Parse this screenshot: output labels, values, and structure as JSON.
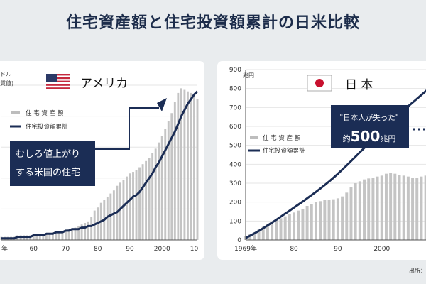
{
  "page": {
    "title": "住宅資産額と住宅投資額累計の日米比較",
    "source": "出所：",
    "colors": {
      "bar": "#c4c4c4",
      "line": "#1b2d55",
      "callout": "#1b2d55",
      "callout_text": "#ffffff"
    }
  },
  "us": {
    "unit_label": "ドル",
    "unit_sub": "質値)",
    "country": "アメリカ",
    "flag": "us-flag",
    "legend": {
      "bar": "住 宅 資 産 額",
      "line": "住宅投資額累計"
    },
    "callout": [
      "むしろ値上がり",
      "する米国の住宅"
    ],
    "x_ticks": [
      "年",
      "60",
      "70",
      "80",
      "90",
      "2000",
      "10"
    ]
  },
  "jp": {
    "unit_label": "兆円",
    "country": "日 本",
    "flag": "japan-flag",
    "legend": {
      "bar": "住 宅 資 産 額",
      "line": "住宅投資額累計"
    },
    "callout": {
      "quote": "\"日本人が失った\"",
      "prefix": "約",
      "amount": "500",
      "suffix": "兆円"
    },
    "x_ticks": [
      "1969年",
      "80",
      "90",
      "2000"
    ],
    "y_ticks": [
      "0",
      "100",
      "200",
      "300",
      "400",
      "500",
      "600",
      "700",
      "800",
      "900"
    ]
  },
  "chart_data": [
    {
      "type": "bar",
      "country": "アメリカ",
      "x_start": 1950,
      "x_end": 2011,
      "xlim": [
        1950,
        2011
      ],
      "ylim": [
        0,
        100
      ],
      "y_scale": "relative (no y tick labels visible)",
      "series": [
        {
          "name": "住 宅 資 産 額",
          "type": "bar",
          "values": [
            2,
            2,
            2,
            2,
            2,
            3,
            3,
            3,
            3,
            3,
            3,
            3,
            4,
            4,
            4,
            4,
            5,
            5,
            5,
            6,
            6,
            7,
            7,
            8,
            9,
            10,
            11,
            12,
            15,
            19,
            21,
            24,
            26,
            28,
            30,
            32,
            35,
            37,
            39,
            41,
            43,
            44,
            45,
            47,
            49,
            51,
            53,
            56,
            59,
            63,
            67,
            72,
            77,
            82,
            89,
            95,
            98,
            97,
            96,
            95,
            94,
            91
          ]
        },
        {
          "name": "住宅投資額累計",
          "type": "line",
          "values": [
            1,
            1,
            1,
            1,
            1,
            2,
            2,
            2,
            2,
            2,
            3,
            3,
            3,
            3,
            4,
            4,
            4,
            5,
            5,
            5,
            6,
            6,
            7,
            7,
            7,
            8,
            8,
            9,
            9,
            10,
            11,
            12,
            13,
            15,
            16,
            17,
            18,
            20,
            22,
            24,
            26,
            28,
            29,
            31,
            34,
            37,
            40,
            43,
            47,
            50,
            54,
            58,
            62,
            66,
            70,
            75,
            80,
            84,
            88,
            91,
            94,
            96
          ]
        }
      ]
    },
    {
      "type": "bar",
      "country": "日本",
      "x_start": 1969,
      "x_end": 2012,
      "xlim": [
        1969,
        2012
      ],
      "ylim": [
        0,
        900
      ],
      "yticks": [
        0,
        100,
        200,
        300,
        400,
        500,
        600,
        700,
        800,
        900
      ],
      "unit": "兆円",
      "series": [
        {
          "name": "住 宅 資 産 額",
          "type": "bar",
          "values": [
            20,
            30,
            40,
            55,
            70,
            85,
            95,
            105,
            115,
            125,
            135,
            145,
            155,
            165,
            180,
            190,
            200,
            205,
            210,
            212,
            215,
            220,
            230,
            250,
            280,
            300,
            310,
            320,
            325,
            330,
            335,
            340,
            350,
            355,
            350,
            345,
            340,
            335,
            330,
            330,
            335,
            340,
            345,
            350
          ]
        },
        {
          "name": "住宅投資額累計",
          "type": "line",
          "values": [
            10,
            22,
            35,
            48,
            62,
            77,
            92,
            107,
            123,
            139,
            155,
            171,
            187,
            203,
            220,
            237,
            254,
            272,
            290,
            309,
            329,
            350,
            372,
            394,
            417,
            440,
            463,
            486,
            509,
            532,
            555,
            578,
            600,
            622,
            643,
            664,
            685,
            706,
            726,
            746,
            766,
            786,
            806,
            825
          ]
        }
      ]
    }
  ]
}
